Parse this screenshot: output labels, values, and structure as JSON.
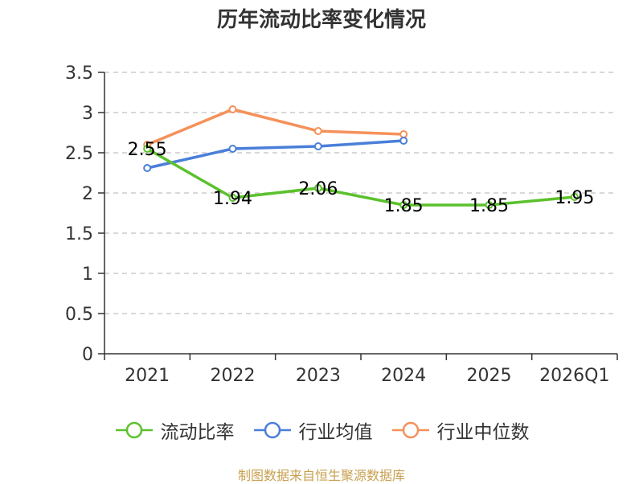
{
  "title": "历年流动比率变化情况",
  "source_note": "制图数据来自恒生聚源数据库",
  "chart_data": {
    "type": "line",
    "title": "历年流动比率变化情况",
    "categories": [
      "2021",
      "2022",
      "2023",
      "2024",
      "2025",
      "2026Q1"
    ],
    "ylim": [
      0,
      3.5
    ],
    "yticks": [
      "0",
      "0.5",
      "1",
      "1.5",
      "2",
      "2.5",
      "3",
      "3.5"
    ],
    "grid": true,
    "legend_position": "bottom",
    "series": [
      {
        "name": "流动比率",
        "color": "#5cc12c",
        "values": [
          2.55,
          1.94,
          2.06,
          1.85,
          1.85,
          1.95
        ],
        "labels": [
          "2.55",
          "1.94",
          "2.06",
          "1.85",
          "1.85",
          "1.95"
        ],
        "show_labels": true
      },
      {
        "name": "行业均值",
        "color": "#4a7fd9",
        "values": [
          2.31,
          2.55,
          2.58,
          2.65,
          null,
          null
        ],
        "show_labels": false
      },
      {
        "name": "行业中位数",
        "color": "#f5915a",
        "values": [
          2.6,
          3.04,
          2.77,
          2.73,
          null,
          null
        ],
        "show_labels": false
      }
    ]
  }
}
